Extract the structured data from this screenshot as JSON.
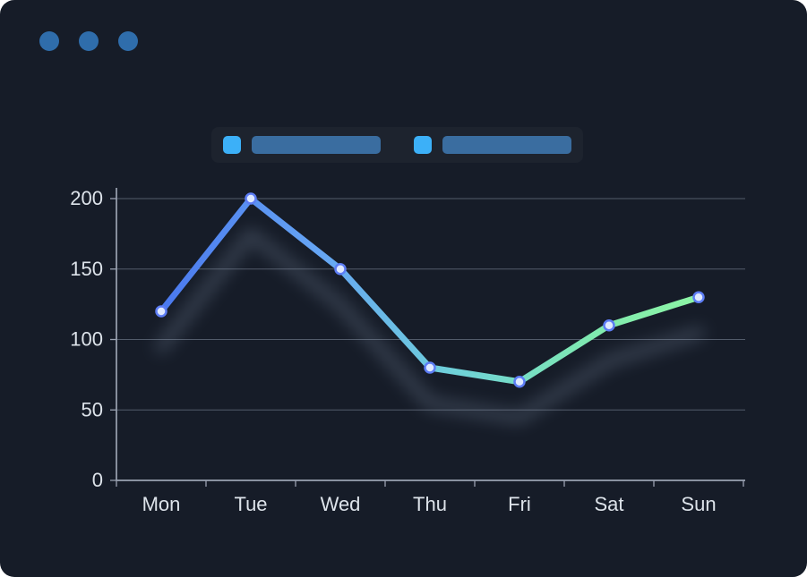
{
  "window": {
    "dots": [
      "#2f6dab",
      "#2f6dab",
      "#2f6dab"
    ]
  },
  "legend": {
    "items": [
      {
        "swatch_color": "#3cb0f8",
        "bar_color": "#3a6da0"
      },
      {
        "swatch_color": "#3cb0f8",
        "bar_color": "#3a6da0"
      }
    ]
  },
  "colors": {
    "background": "#161c28",
    "grid": "#525b6a",
    "axis": "#9aa2b1",
    "tick_label": "#dde3ea",
    "glow": "#8ea0b8"
  },
  "chart_data": {
    "type": "line",
    "title": "",
    "xlabel": "",
    "ylabel": "",
    "categories": [
      "Mon",
      "Tue",
      "Wed",
      "Thu",
      "Fri",
      "Sat",
      "Sun"
    ],
    "values": [
      120,
      200,
      150,
      80,
      70,
      110,
      130
    ],
    "ylim": [
      0,
      200
    ],
    "yticks": [
      0,
      50,
      100,
      150,
      200
    ],
    "grid": true,
    "legend_position": "top",
    "line_gradient": [
      {
        "offset": 0,
        "color": "#4a78ee"
      },
      {
        "offset": 0.3,
        "color": "#66a6f4"
      },
      {
        "offset": 0.55,
        "color": "#6fd2d8"
      },
      {
        "offset": 0.8,
        "color": "#7fe9b0"
      },
      {
        "offset": 1,
        "color": "#8df5a5"
      }
    ],
    "marker": {
      "fill": "#dfe9ff",
      "stroke": "#5d7df5"
    }
  }
}
